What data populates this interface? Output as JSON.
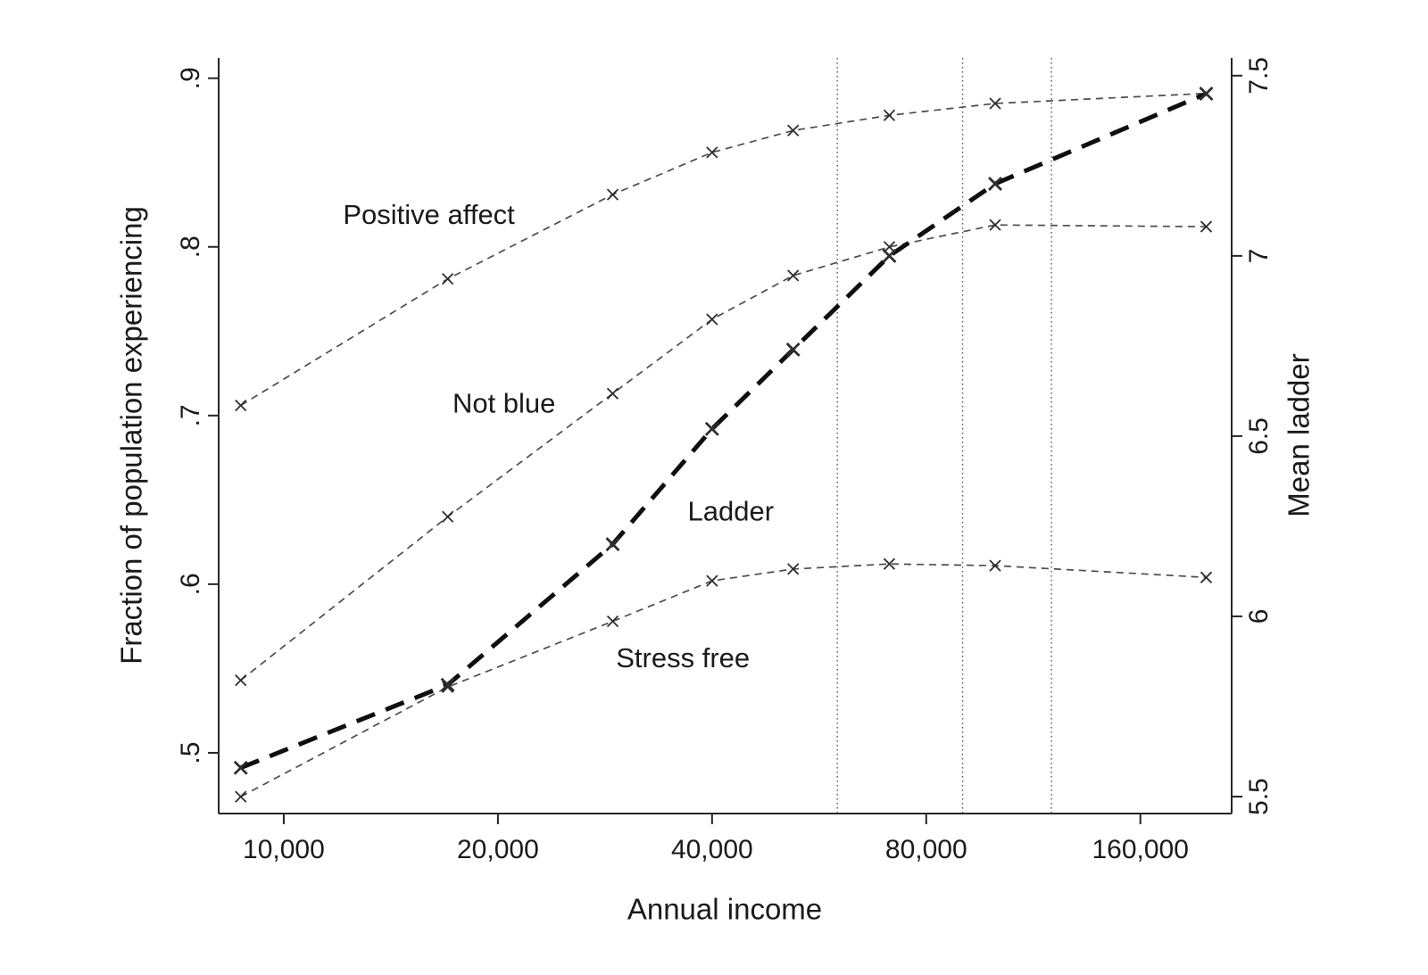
{
  "page": {
    "background": "#ffffff"
  },
  "chart_data": {
    "type": "line",
    "title": "",
    "x_axis": {
      "label": "Annual income",
      "scale": "log",
      "min": 8100,
      "max": 215000,
      "ticks": [
        10000,
        20000,
        40000,
        80000,
        160000
      ],
      "tick_labels": [
        "10,000",
        "20,000",
        "40,000",
        "80,000",
        "160,000"
      ]
    },
    "y_axis_left": {
      "label": "Fraction of population experiencing",
      "min": 0.464,
      "max": 0.912,
      "ticks": [
        0.5,
        0.6,
        0.7,
        0.8,
        0.9
      ],
      "tick_labels": [
        ".5",
        ".6",
        ".7",
        ".8",
        ".9"
      ]
    },
    "y_axis_right": {
      "label": "Mean ladder",
      "min": 5.453,
      "max": 7.549,
      "ticks": [
        5.5,
        6.0,
        6.5,
        7.0,
        7.5
      ],
      "tick_labels": [
        "5.5",
        "6",
        "6.5",
        "7",
        "7.5"
      ]
    },
    "x_values": [
      8700,
      17000,
      29000,
      40000,
      52000,
      71000,
      100000,
      198000
    ],
    "series": [
      {
        "id": "positive-affect",
        "name": "Positive affect",
        "axis": "left",
        "style": "thin-dashed",
        "values": [
          0.706,
          0.781,
          0.831,
          0.856,
          0.869,
          0.878,
          0.885,
          0.891
        ]
      },
      {
        "id": "not-blue",
        "name": "Not blue",
        "axis": "left",
        "style": "thin-dashed",
        "values": [
          0.543,
          0.64,
          0.713,
          0.757,
          0.783,
          0.8,
          0.813,
          0.812
        ]
      },
      {
        "id": "stress-free",
        "name": "Stress free",
        "axis": "left",
        "style": "thin-dashed",
        "values": [
          0.474,
          0.539,
          0.578,
          0.602,
          0.609,
          0.612,
          0.611,
          0.604
        ]
      },
      {
        "id": "ladder",
        "name": "Ladder",
        "axis": "right",
        "style": "bold-dashed",
        "values": [
          5.58,
          5.81,
          6.2,
          6.52,
          6.74,
          7.0,
          7.2,
          7.45
        ]
      }
    ],
    "annotations": [
      {
        "id": "positive-affect",
        "text": "Positive affect",
        "x": 16000,
        "y": 0.818
      },
      {
        "id": "not-blue",
        "text": "Not blue",
        "x": 20400,
        "y": 0.706
      },
      {
        "id": "ladder",
        "text": "Ladder",
        "x": 42500,
        "y": 0.642
      },
      {
        "id": "stress-free",
        "text": "Stress free",
        "x": 36400,
        "y": 0.555
      }
    ],
    "reference_lines_x": [
      60000,
      90000,
      120000
    ],
    "grid": false,
    "legend": "inline-labels",
    "marker": "x",
    "colors": {
      "background": "#ffffff",
      "axis": "#262626",
      "text": "#1a1a1a",
      "thin_line": "#4d4d4d",
      "bold_line": "#0f0f0f",
      "marker": "#2e2e2e",
      "reference_line": "#555555"
    }
  }
}
